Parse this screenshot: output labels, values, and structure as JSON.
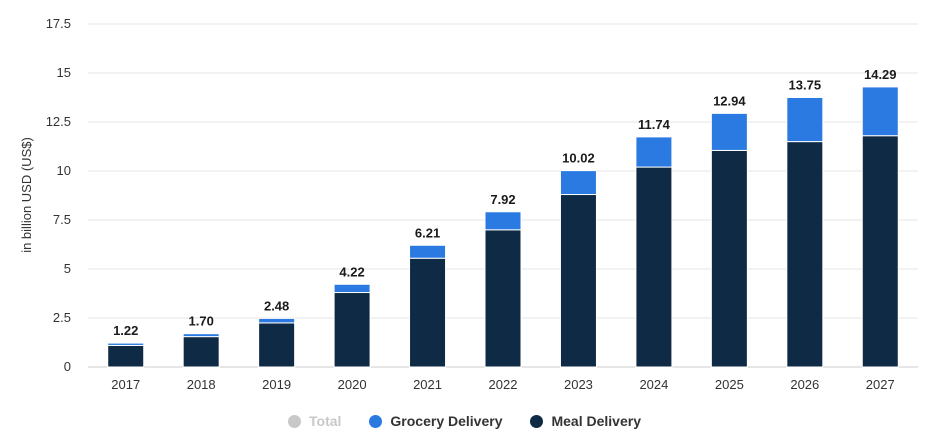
{
  "chart_data": {
    "type": "bar",
    "stacked": true,
    "categories": [
      "2017",
      "2018",
      "2019",
      "2020",
      "2021",
      "2022",
      "2023",
      "2024",
      "2025",
      "2026",
      "2027"
    ],
    "series": [
      {
        "name": "Meal Delivery",
        "color": "#0f2a44",
        "values": [
          1.1,
          1.55,
          2.25,
          3.8,
          5.55,
          7.0,
          8.8,
          10.2,
          11.05,
          11.5,
          11.8
        ]
      },
      {
        "name": "Grocery Delivery",
        "color": "#2a7ae2",
        "values": [
          0.12,
          0.15,
          0.23,
          0.42,
          0.66,
          0.92,
          1.22,
          1.54,
          1.89,
          2.25,
          2.49
        ]
      },
      {
        "name": "Total",
        "color": "#c8c8c8",
        "hidden": true,
        "values": [
          1.22,
          1.7,
          2.48,
          4.22,
          6.21,
          7.92,
          10.02,
          11.74,
          12.94,
          13.75,
          14.29
        ]
      }
    ],
    "total_labels": [
      "1.22",
      "1.70",
      "2.48",
      "4.22",
      "6.21",
      "7.92",
      "10.02",
      "11.74",
      "12.94",
      "13.75",
      "14.29"
    ],
    "ylabel": "in billion USD (US$)",
    "ylim": [
      0,
      17.5
    ],
    "yticks": [
      "0",
      "2.5",
      "5",
      "7.5",
      "10",
      "12.5",
      "15",
      "17.5"
    ],
    "ytick_values": [
      0,
      2.5,
      5,
      7.5,
      10,
      12.5,
      15,
      17.5
    ],
    "grid": true,
    "legend_position": "bottom-center"
  },
  "legend": {
    "items": [
      {
        "label": "Total",
        "color": "#c8c8c8",
        "active": false
      },
      {
        "label": "Grocery Delivery",
        "color": "#2a7ae2",
        "active": true
      },
      {
        "label": "Meal Delivery",
        "color": "#0f2a44",
        "active": true
      }
    ]
  }
}
